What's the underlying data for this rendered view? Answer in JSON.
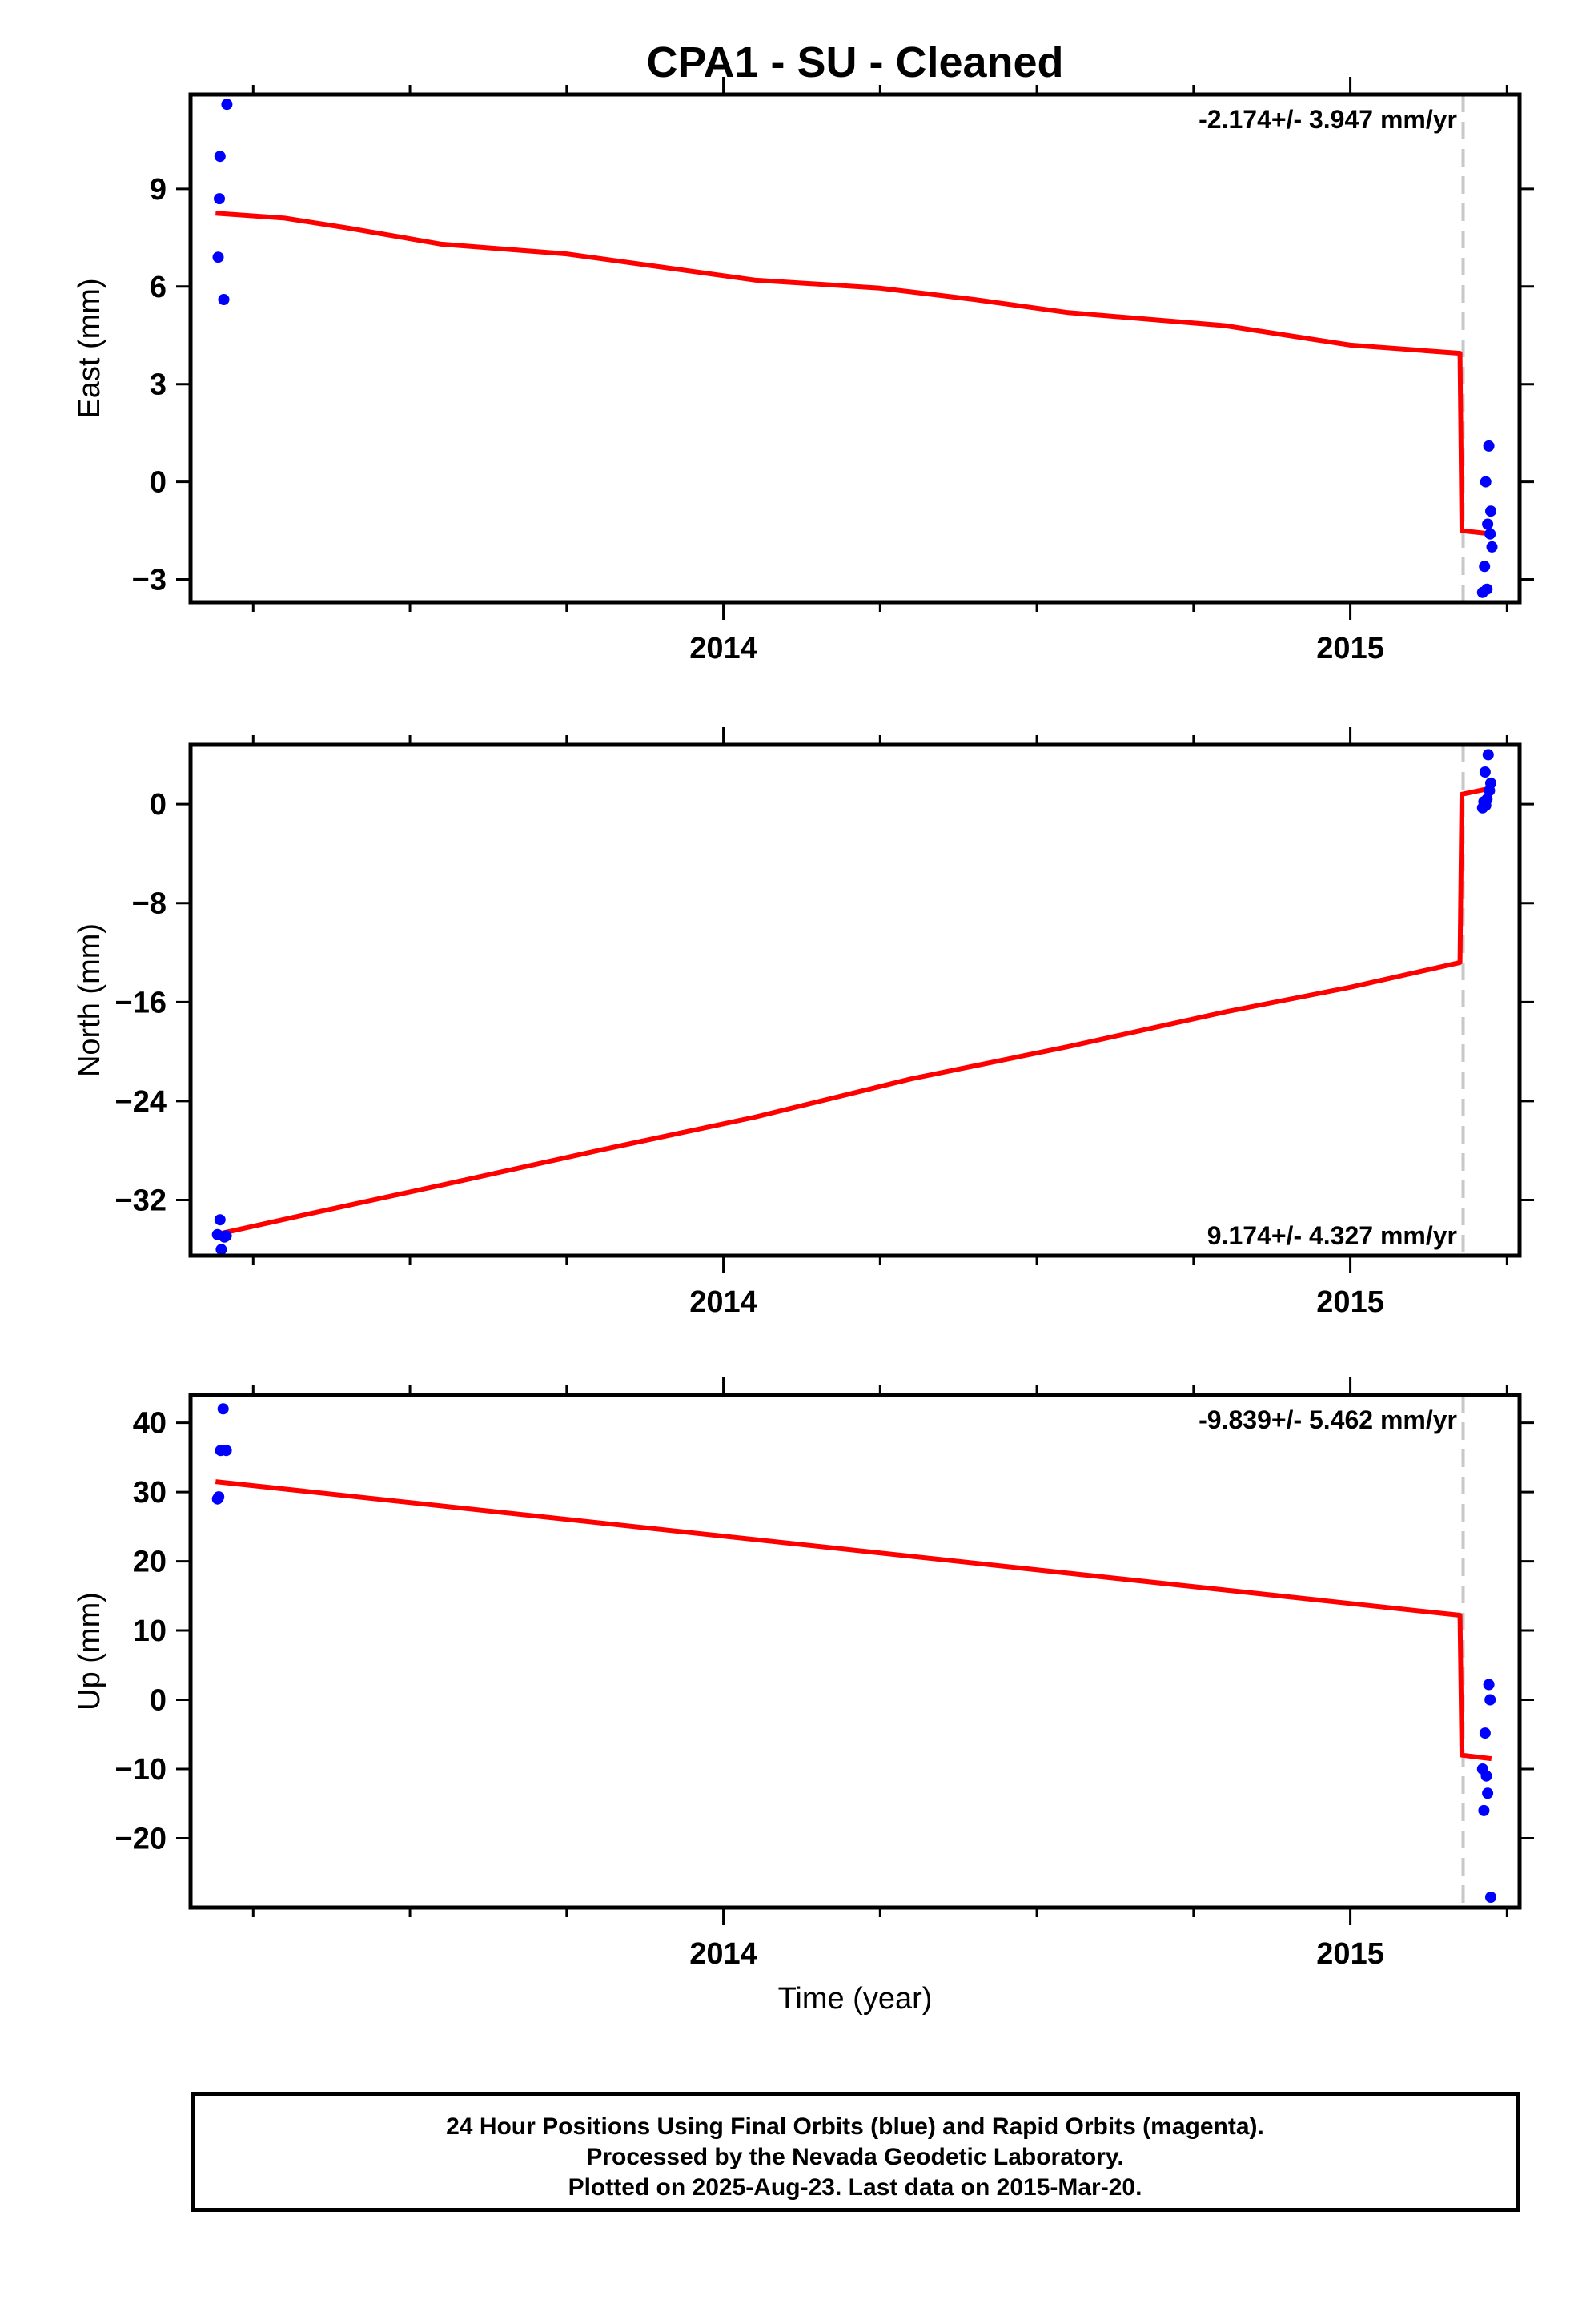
{
  "title": "CPA1  - SU - Cleaned",
  "x_axis_title": "Time (year)",
  "caption": {
    "line1": "24 Hour Positions Using Final Orbits (blue) and Rapid Orbits (magenta).",
    "line2": "Processed by the Nevada Geodetic Laboratory.",
    "line3": "Plotted on 2025-Aug-23. Last data on 2015-Mar-20."
  },
  "colors": {
    "points": "#0000ff",
    "model": "#ff0000",
    "step_line": "#c8c8c8",
    "axes": "#000000"
  },
  "chart_data": [
    {
      "type": "scatter",
      "component": "East",
      "ylabel": "East (mm)",
      "velocity_text": "-2.174+/- 3.947 mm/yr",
      "velocity_position": "top-right",
      "xlim": [
        2013.15,
        2015.27
      ],
      "ylim": [
        -3.7,
        11.9
      ],
      "yticks": [
        -3,
        0,
        3,
        6,
        9
      ],
      "ytick_labels": [
        "−3",
        "0",
        "3",
        "6",
        "9"
      ],
      "xticks_major": [
        2014,
        2015
      ],
      "xtick_labels": [
        "2014",
        "2015"
      ],
      "step_time": 2015.18,
      "points": [
        {
          "x": 2013.194,
          "y": 6.9
        },
        {
          "x": 2013.196,
          "y": 8.7
        },
        {
          "x": 2013.197,
          "y": 10.0
        },
        {
          "x": 2013.203,
          "y": 5.6
        },
        {
          "x": 2013.208,
          "y": 11.6
        },
        {
          "x": 2015.211,
          "y": -3.4
        },
        {
          "x": 2015.214,
          "y": -2.6
        },
        {
          "x": 2015.216,
          "y": 0.0
        },
        {
          "x": 2015.218,
          "y": -3.3
        },
        {
          "x": 2015.219,
          "y": -1.3
        },
        {
          "x": 2015.221,
          "y": 1.1
        },
        {
          "x": 2015.223,
          "y": -1.6
        },
        {
          "x": 2015.224,
          "y": -0.9
        },
        {
          "x": 2015.226,
          "y": -2.0
        }
      ],
      "model": [
        {
          "x": 2013.19,
          "y": 8.25
        },
        {
          "x": 2013.3,
          "y": 8.1
        },
        {
          "x": 2013.4,
          "y": 7.8
        },
        {
          "x": 2013.55,
          "y": 7.3
        },
        {
          "x": 2013.75,
          "y": 7.0
        },
        {
          "x": 2013.9,
          "y": 6.6
        },
        {
          "x": 2014.05,
          "y": 6.2
        },
        {
          "x": 2014.25,
          "y": 5.95
        },
        {
          "x": 2014.4,
          "y": 5.6
        },
        {
          "x": 2014.55,
          "y": 5.2
        },
        {
          "x": 2014.8,
          "y": 4.8
        },
        {
          "x": 2015.0,
          "y": 4.2
        },
        {
          "x": 2015.175,
          "y": 3.95
        },
        {
          "x": 2015.178,
          "y": -1.5
        },
        {
          "x": 2015.225,
          "y": -1.6
        }
      ]
    },
    {
      "type": "scatter",
      "component": "North",
      "ylabel": "North (mm)",
      "velocity_text": "9.174+/- 4.327 mm/yr",
      "velocity_position": "bottom-right",
      "xlim": [
        2013.15,
        2015.27
      ],
      "ylim": [
        -36.5,
        4.8
      ],
      "yticks": [
        -32,
        -24,
        -16,
        -8,
        0
      ],
      "ytick_labels": [
        "−32",
        "−24",
        "−16",
        "−8",
        "0"
      ],
      "xticks_major": [
        2014,
        2015
      ],
      "xtick_labels": [
        "2014",
        "2015"
      ],
      "step_time": 2015.18,
      "points": [
        {
          "x": 2013.193,
          "y": -34.8
        },
        {
          "x": 2013.197,
          "y": -33.6
        },
        {
          "x": 2013.199,
          "y": -36.0
        },
        {
          "x": 2013.204,
          "y": -35.0
        },
        {
          "x": 2013.207,
          "y": -34.9
        },
        {
          "x": 2015.211,
          "y": -0.3
        },
        {
          "x": 2015.213,
          "y": 0.2
        },
        {
          "x": 2015.215,
          "y": 2.6
        },
        {
          "x": 2015.216,
          "y": -0.1
        },
        {
          "x": 2015.218,
          "y": 0.4
        },
        {
          "x": 2015.22,
          "y": 4.0
        },
        {
          "x": 2015.222,
          "y": 1.1
        },
        {
          "x": 2015.224,
          "y": 1.7
        }
      ],
      "model": [
        {
          "x": 2013.19,
          "y": -34.8
        },
        {
          "x": 2013.35,
          "y": -33.0
        },
        {
          "x": 2013.55,
          "y": -30.8
        },
        {
          "x": 2013.8,
          "y": -28.0
        },
        {
          "x": 2014.05,
          "y": -25.3
        },
        {
          "x": 2014.3,
          "y": -22.2
        },
        {
          "x": 2014.55,
          "y": -19.6
        },
        {
          "x": 2014.8,
          "y": -16.8
        },
        {
          "x": 2015.0,
          "y": -14.8
        },
        {
          "x": 2015.175,
          "y": -12.8
        },
        {
          "x": 2015.178,
          "y": 0.8
        },
        {
          "x": 2015.225,
          "y": 1.3
        }
      ]
    },
    {
      "type": "scatter",
      "component": "Up",
      "ylabel": "Up (mm)",
      "velocity_text": "-9.839+/- 5.462 mm/yr",
      "velocity_position": "top-right",
      "xlim": [
        2013.15,
        2015.27
      ],
      "ylim": [
        -30,
        44
      ],
      "yticks": [
        -20,
        -10,
        0,
        10,
        20,
        30,
        40
      ],
      "ytick_labels": [
        "−20",
        "−10",
        "0",
        "10",
        "20",
        "30",
        "40"
      ],
      "xticks_major": [
        2014,
        2015
      ],
      "xtick_labels": [
        "2014",
        "2015"
      ],
      "step_time": 2015.18,
      "points": [
        {
          "x": 2013.193,
          "y": 29.0
        },
        {
          "x": 2013.195,
          "y": 29.3
        },
        {
          "x": 2013.198,
          "y": 36.0
        },
        {
          "x": 2013.202,
          "y": 42.0
        },
        {
          "x": 2013.207,
          "y": 36.0
        },
        {
          "x": 2015.211,
          "y": -10.0
        },
        {
          "x": 2015.213,
          "y": -16.0
        },
        {
          "x": 2015.215,
          "y": -4.8
        },
        {
          "x": 2015.217,
          "y": -11.0
        },
        {
          "x": 2015.219,
          "y": -13.5
        },
        {
          "x": 2015.221,
          "y": 2.2
        },
        {
          "x": 2015.223,
          "y": 0.0
        },
        {
          "x": 2015.224,
          "y": -28.5
        }
      ],
      "model": [
        {
          "x": 2013.19,
          "y": 31.5
        },
        {
          "x": 2015.175,
          "y": 12.2
        },
        {
          "x": 2015.178,
          "y": -8.0
        },
        {
          "x": 2015.225,
          "y": -8.5
        }
      ]
    }
  ]
}
